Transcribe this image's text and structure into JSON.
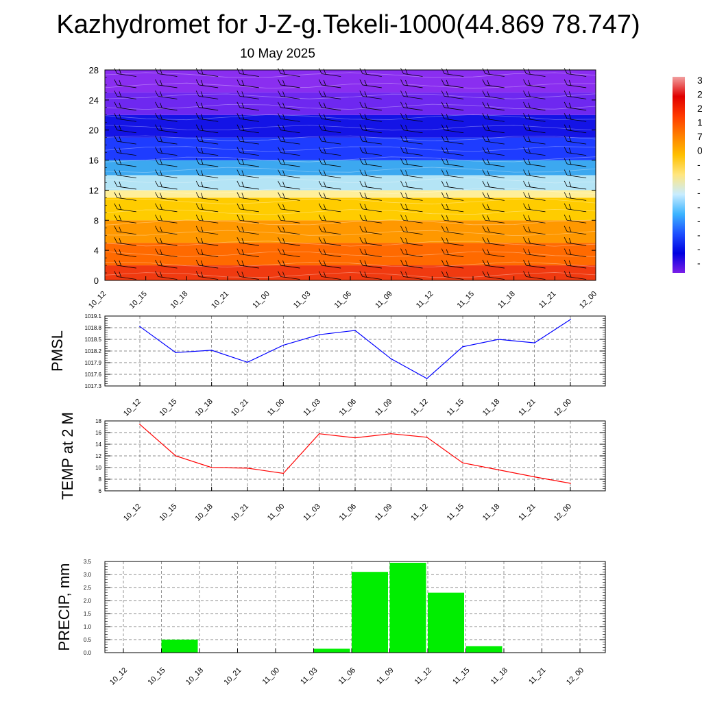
{
  "title": "Kazhydromet for J-Z-g.Tekeli-1000(44.869 78.747)",
  "subtitle": "10 May 2025",
  "time_labels": [
    "10_12",
    "10_15",
    "10_18",
    "10_21",
    "11_00",
    "11_03",
    "11_06",
    "11_09",
    "11_12",
    "11_15",
    "11_18",
    "11_21",
    "12_00"
  ],
  "colorbar": {
    "labels": [
      "3",
      "2",
      "2",
      "1",
      "7",
      "0",
      "-",
      "-",
      "-",
      "-",
      "-",
      "-",
      "-",
      "-"
    ],
    "colors_top_to_bottom": [
      "#f2a0a0",
      "#e00000",
      "#ff3a00",
      "#ff8000",
      "#ffc000",
      "#ffe680",
      "#c8ecff",
      "#3cb4ff",
      "#1e50ff",
      "#0000e0",
      "#7a1ee8"
    ]
  },
  "chart_data": [
    {
      "type": "heatmap",
      "name": "temperature-wind-profile",
      "x": [
        "10_12",
        "10_15",
        "10_18",
        "10_21",
        "11_00",
        "11_03",
        "11_06",
        "11_09",
        "11_12",
        "11_15",
        "11_18",
        "11_21",
        "12_00"
      ],
      "ylim": [
        0,
        28
      ],
      "yticks": [
        0,
        4,
        8,
        12,
        16,
        20,
        24,
        28
      ],
      "layers_bottom_to_top": [
        {
          "y0": 0,
          "y1": 2,
          "color": "#f03a10"
        },
        {
          "y0": 2,
          "y1": 5,
          "color": "#ff6a00"
        },
        {
          "y0": 5,
          "y1": 8,
          "color": "#ff9800"
        },
        {
          "y0": 8,
          "y1": 11,
          "color": "#ffcc00"
        },
        {
          "y0": 11,
          "y1": 12,
          "color": "#ffef9a"
        },
        {
          "y0": 12,
          "y1": 14,
          "color": "#b4e4f5"
        },
        {
          "y0": 14,
          "y1": 16,
          "color": "#3ca8f0"
        },
        {
          "y0": 16,
          "y1": 19,
          "color": "#1e3cff"
        },
        {
          "y0": 19,
          "y1": 22,
          "color": "#1414e6"
        },
        {
          "y0": 22,
          "y1": 25,
          "color": "#6e28f0"
        },
        {
          "y0": 25,
          "y1": 28,
          "color": "#8a2ef0"
        }
      ]
    },
    {
      "type": "line",
      "name": "PMSL",
      "ylabel": "PMSL",
      "x": [
        "10_12",
        "10_15",
        "10_18",
        "10_21",
        "11_00",
        "11_03",
        "11_06",
        "11_09",
        "11_12",
        "11_15",
        "11_18",
        "11_21",
        "12_00"
      ],
      "ylim": [
        1017.3,
        1019.1
      ],
      "yticks": [
        1017.3,
        1017.6,
        1017.9,
        1018.2,
        1018.5,
        1018.8,
        1019.1
      ],
      "values": [
        1018.83,
        1018.16,
        1018.22,
        1017.91,
        1018.35,
        1018.62,
        1018.73,
        1018.0,
        1017.49,
        1018.31,
        1018.5,
        1018.41,
        1019.01
      ],
      "color": "#0000ff",
      "grid": true
    },
    {
      "type": "line",
      "name": "TEMP at 2 M",
      "ylabel": "TEMP at 2 M",
      "x": [
        "10_12",
        "10_15",
        "10_18",
        "10_21",
        "11_00",
        "11_03",
        "11_06",
        "11_09",
        "11_12",
        "11_15",
        "11_18",
        "11_21",
        "12_00"
      ],
      "ylim": [
        6,
        18
      ],
      "yticks": [
        6,
        8,
        10,
        12,
        14,
        16,
        18
      ],
      "values": [
        17.4,
        12.0,
        10.0,
        9.9,
        9.0,
        15.8,
        15.1,
        15.8,
        15.2,
        10.8,
        9.6,
        8.4,
        7.3
      ],
      "color": "#ff0000",
      "grid": true
    },
    {
      "type": "bar",
      "name": "PRECIP, mm",
      "ylabel": "PRECIP, mm",
      "categories": [
        "10_12",
        "10_15",
        "10_18",
        "10_21",
        "11_00",
        "11_03",
        "11_06",
        "11_09",
        "11_12",
        "11_15",
        "11_18",
        "11_21",
        "12_00"
      ],
      "values": [
        0,
        0.5,
        0,
        0,
        0,
        0.15,
        3.1,
        3.45,
        2.3,
        0.25,
        0,
        0,
        0
      ],
      "ylim": [
        0,
        3.5
      ],
      "yticks": [
        0.0,
        0.5,
        1.0,
        1.5,
        2.0,
        2.5,
        3.0,
        3.5
      ],
      "color": "#00ee00",
      "grid": true
    }
  ]
}
